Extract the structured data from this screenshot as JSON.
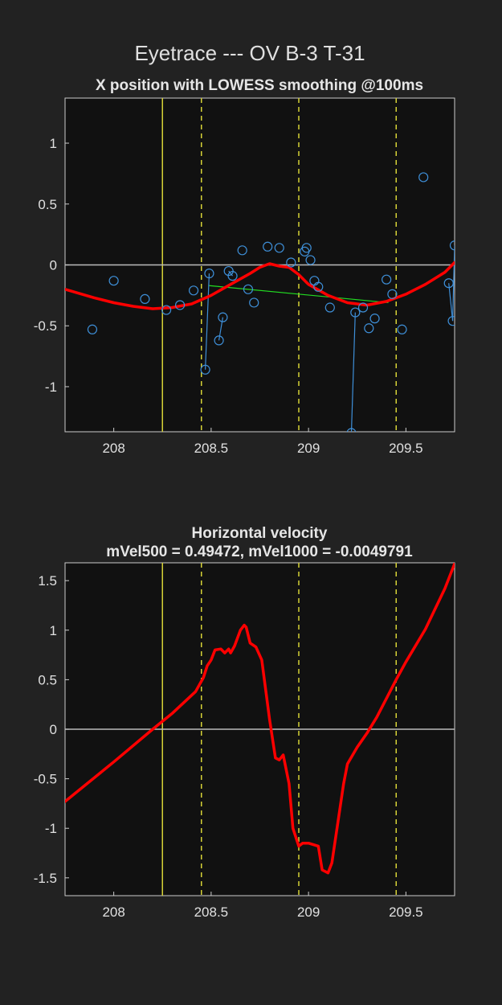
{
  "figure": {
    "title": "Eyetrace --- OV B-3 T-31",
    "background": "#222222",
    "axes_background": "#111111"
  },
  "chart_data": [
    {
      "type": "scatter",
      "title": "X position with LOWESS smoothing @100ms",
      "xlim": [
        207.75,
        209.75
      ],
      "ylim": [
        -1.37,
        1.37
      ],
      "xticks": [
        208,
        208.5,
        209,
        209.5
      ],
      "xtick_labels": [
        "208",
        "208.5",
        "209",
        "209.5"
      ],
      "yticks": [
        1,
        0.5,
        0,
        -0.5,
        -1
      ],
      "ytick_labels": [
        "1",
        "0.5",
        "0",
        "-0.5",
        "-1"
      ],
      "grid": false,
      "vlines": [
        {
          "x": 208.25,
          "style": "solid",
          "color": "#d6d236"
        },
        {
          "x": 208.45,
          "style": "dashed",
          "color": "#d6d236"
        },
        {
          "x": 208.95,
          "style": "dashed",
          "color": "#d6d236"
        },
        {
          "x": 209.45,
          "style": "dashed",
          "color": "#d6d236"
        }
      ],
      "zero_line": {
        "y": 0,
        "color": "#bbbbbb"
      },
      "samples": {
        "color": "#3e8fd8",
        "points": [
          {
            "x": 207.89,
            "y": -0.53
          },
          {
            "x": 208.0,
            "y": -0.13
          },
          {
            "x": 208.16,
            "y": -0.28
          },
          {
            "x": 208.27,
            "y": -0.37
          },
          {
            "x": 208.34,
            "y": -0.33
          },
          {
            "x": 208.41,
            "y": -0.21
          },
          {
            "x": 208.47,
            "y": -0.86
          },
          {
            "x": 208.49,
            "y": -0.07
          },
          {
            "x": 208.54,
            "y": -0.62
          },
          {
            "x": 208.56,
            "y": -0.43
          },
          {
            "x": 208.59,
            "y": -0.05
          },
          {
            "x": 208.61,
            "y": -0.09
          },
          {
            "x": 208.66,
            "y": 0.12
          },
          {
            "x": 208.69,
            "y": -0.2
          },
          {
            "x": 208.72,
            "y": -0.31
          },
          {
            "x": 208.79,
            "y": 0.15
          },
          {
            "x": 208.85,
            "y": 0.14
          },
          {
            "x": 208.91,
            "y": 0.02
          },
          {
            "x": 208.98,
            "y": 0.11
          },
          {
            "x": 208.99,
            "y": 0.14
          },
          {
            "x": 209.01,
            "y": 0.04
          },
          {
            "x": 209.03,
            "y": -0.13
          },
          {
            "x": 209.05,
            "y": -0.18
          },
          {
            "x": 209.11,
            "y": -0.35
          },
          {
            "x": 209.22,
            "y": -1.38
          },
          {
            "x": 209.24,
            "y": -0.39
          },
          {
            "x": 209.28,
            "y": -0.35
          },
          {
            "x": 209.31,
            "y": -0.52
          },
          {
            "x": 209.34,
            "y": -0.44
          },
          {
            "x": 209.4,
            "y": -0.12
          },
          {
            "x": 209.43,
            "y": -0.24
          },
          {
            "x": 209.48,
            "y": -0.53
          },
          {
            "x": 209.59,
            "y": 0.72
          },
          {
            "x": 209.72,
            "y": -0.15
          },
          {
            "x": 209.74,
            "y": -0.46
          },
          {
            "x": 209.75,
            "y": 0.16
          }
        ],
        "connected_segments": [
          [
            6,
            7
          ],
          [
            8,
            9
          ],
          [
            10,
            11
          ],
          [
            24,
            25
          ],
          [
            33,
            34
          ],
          [
            34,
            35
          ]
        ]
      },
      "trend": {
        "color": "#22dd22",
        "x": [
          208.49,
          209.41
        ],
        "y": [
          -0.17,
          -0.31
        ]
      },
      "lowess": {
        "color": "#ff0000",
        "x": [
          207.75,
          207.9,
          208.0,
          208.1,
          208.2,
          208.3,
          208.4,
          208.5,
          208.6,
          208.7,
          208.75,
          208.8,
          208.85,
          208.9,
          208.95,
          209.0,
          209.1,
          209.2,
          209.3,
          209.4,
          209.5,
          209.6,
          209.7,
          209.75
        ],
        "y": [
          -0.2,
          -0.27,
          -0.31,
          -0.34,
          -0.36,
          -0.35,
          -0.32,
          -0.25,
          -0.16,
          -0.07,
          -0.02,
          0.01,
          -0.01,
          -0.02,
          -0.08,
          -0.16,
          -0.25,
          -0.31,
          -0.33,
          -0.3,
          -0.24,
          -0.16,
          -0.06,
          0.02
        ]
      }
    },
    {
      "type": "line",
      "title": "Horizontal velocity",
      "subtitle": "mVel500 = 0.49472, mVel1000 = -0.0049791",
      "xlim": [
        207.75,
        209.75
      ],
      "ylim": [
        -1.68,
        1.68
      ],
      "xticks": [
        208,
        208.5,
        209,
        209.5
      ],
      "xtick_labels": [
        "208",
        "208.5",
        "209",
        "209.5"
      ],
      "yticks": [
        1.5,
        1,
        0.5,
        0,
        -0.5,
        -1,
        -1.5
      ],
      "ytick_labels": [
        "1.5",
        "1",
        "0.5",
        "0",
        "-0.5",
        "-1",
        "-1.5"
      ],
      "grid": false,
      "vlines": [
        {
          "x": 208.25,
          "style": "solid",
          "color": "#d6d236"
        },
        {
          "x": 208.45,
          "style": "dashed",
          "color": "#d6d236"
        },
        {
          "x": 208.95,
          "style": "dashed",
          "color": "#d6d236"
        },
        {
          "x": 209.45,
          "style": "dashed",
          "color": "#d6d236"
        }
      ],
      "zero_line": {
        "y": 0,
        "color": "#bbbbbb"
      },
      "series": [
        {
          "color": "#ff0000",
          "x": [
            207.75,
            208.0,
            208.2,
            208.3,
            208.42,
            208.46,
            208.48,
            208.5,
            208.52,
            208.55,
            208.57,
            208.59,
            208.6,
            208.62,
            208.65,
            208.67,
            208.68,
            208.7,
            208.73,
            208.76,
            208.8,
            208.83,
            208.85,
            208.87,
            208.9,
            208.92,
            208.95,
            208.97,
            209.0,
            209.05,
            209.07,
            209.1,
            209.12,
            209.15,
            209.18,
            209.2,
            209.25,
            209.3,
            209.35,
            209.4,
            209.45,
            209.5,
            209.6,
            209.7,
            209.75
          ],
          "y": [
            -0.73,
            -0.33,
            0.0,
            0.16,
            0.38,
            0.52,
            0.64,
            0.7,
            0.8,
            0.81,
            0.77,
            0.81,
            0.77,
            0.84,
            1.0,
            1.05,
            1.03,
            0.87,
            0.83,
            0.7,
            0.1,
            -0.29,
            -0.31,
            -0.26,
            -0.55,
            -1.0,
            -1.18,
            -1.15,
            -1.15,
            -1.18,
            -1.42,
            -1.45,
            -1.35,
            -0.95,
            -0.55,
            -0.35,
            -0.18,
            -0.04,
            0.12,
            0.31,
            0.5,
            0.68,
            1.01,
            1.42,
            1.67
          ]
        }
      ]
    }
  ]
}
